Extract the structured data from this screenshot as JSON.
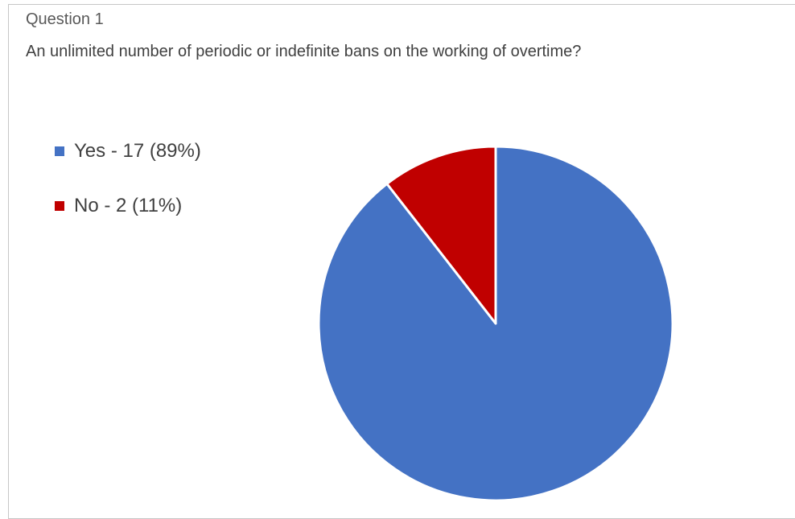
{
  "chart_data": {
    "type": "pie",
    "title": "Question 1",
    "subtitle": "An unlimited number of periodic or indefinite bans on the working of overtime?",
    "legend_position": "left",
    "slices": [
      {
        "label": "Yes - 17 (89%)",
        "category": "Yes",
        "count": 17,
        "percent": 89,
        "color": "#4472C4"
      },
      {
        "label": "No - 2 (11%)",
        "category": "No",
        "count": 2,
        "percent": 11,
        "color": "#C00000"
      }
    ]
  }
}
